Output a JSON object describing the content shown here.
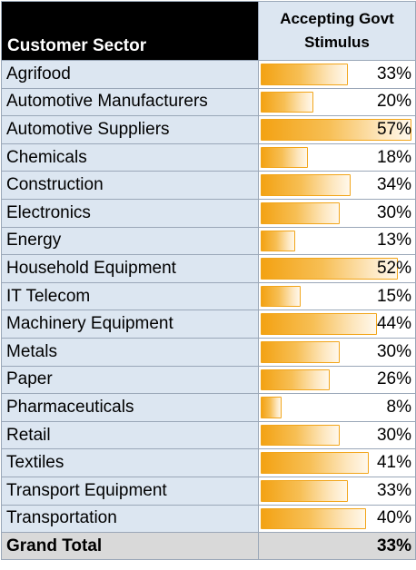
{
  "header": {
    "sector_label": "Customer Sector",
    "value_label_line1": "Accepting Govt",
    "value_label_line2": "Stimulus"
  },
  "rows": [
    {
      "sector": "Agrifood",
      "value": 0.33,
      "label": "33%"
    },
    {
      "sector": "Automotive Manufacturers",
      "value": 0.2,
      "label": "20%"
    },
    {
      "sector": "Automotive Suppliers",
      "value": 0.57,
      "label": "57%"
    },
    {
      "sector": "Chemicals",
      "value": 0.18,
      "label": "18%"
    },
    {
      "sector": "Construction",
      "value": 0.34,
      "label": "34%"
    },
    {
      "sector": "Electronics",
      "value": 0.3,
      "label": "30%"
    },
    {
      "sector": "Energy",
      "value": 0.13,
      "label": "13%"
    },
    {
      "sector": "Household Equipment",
      "value": 0.52,
      "label": "52%"
    },
    {
      "sector": "IT Telecom",
      "value": 0.15,
      "label": "15%"
    },
    {
      "sector": "Machinery Equipment",
      "value": 0.44,
      "label": "44%"
    },
    {
      "sector": "Metals",
      "value": 0.3,
      "label": "30%"
    },
    {
      "sector": "Paper",
      "value": 0.26,
      "label": "26%"
    },
    {
      "sector": "Pharmaceuticals",
      "value": 0.08,
      "label": "8%"
    },
    {
      "sector": "Retail",
      "value": 0.3,
      "label": "30%"
    },
    {
      "sector": "Textiles",
      "value": 0.41,
      "label": "41%"
    },
    {
      "sector": "Transport Equipment",
      "value": 0.33,
      "label": "33%"
    },
    {
      "sector": "Transportation",
      "value": 0.4,
      "label": "40%"
    }
  ],
  "total": {
    "sector": "Grand Total",
    "label": "33%"
  },
  "colors": {
    "header_dark": "#000000",
    "row_label_bg": "#dce6f1",
    "bar_orange": "#f3a213",
    "total_bg": "#d9d9d9"
  }
}
